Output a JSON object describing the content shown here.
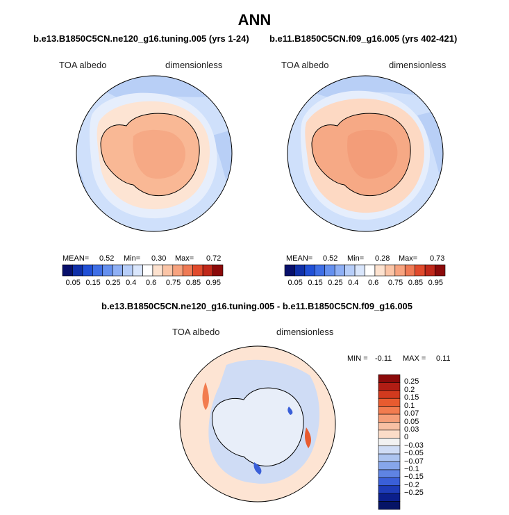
{
  "title": "ANN",
  "panels": [
    {
      "id": "left",
      "case": "b.e13.B1850C5CN.ne120_g16.tuning.005 (yrs 1-24)",
      "variable": "TOA albedo",
      "units": "dimensionless",
      "mean_label": "MEAN=",
      "mean": "0.52",
      "min_label": "Min=",
      "min": "0.30",
      "max_label": "Max=",
      "max": "0.72"
    },
    {
      "id": "right",
      "case": "b.e11.B1850C5CN.f09_g16.005 (yrs 402-421)",
      "variable": "TOA albedo",
      "units": "dimensionless",
      "mean_label": "MEAN=",
      "mean": "0.52",
      "min_label": "Min=",
      "min": "0.28",
      "max_label": "Max=",
      "max": "0.73"
    }
  ],
  "horizontal_colorbar": {
    "colors": [
      "#08106b",
      "#1030a8",
      "#2150d6",
      "#3f6fe6",
      "#6590ef",
      "#8fb0f5",
      "#b7cef9",
      "#d9e6fc",
      "#ffffff",
      "#fde2cf",
      "#fbc5a7",
      "#f7a37f",
      "#ef7a55",
      "#e04a2c",
      "#c0281a",
      "#8b0a0a"
    ],
    "labels": [
      "0.05",
      "0.15",
      "0.25",
      "0.4",
      "0.6",
      "0.75",
      "0.85",
      "0.95"
    ]
  },
  "difference": {
    "title": "b.e13.B1850C5CN.ne120_g16.tuning.005 - b.e11.B1850C5CN.f09_g16.005",
    "variable": "TOA albedo",
    "units": "dimensionless",
    "min_label": "MIN =",
    "min": "-0.11",
    "max_label": "MAX =",
    "max": "0.11",
    "colorbar": {
      "colors": [
        "#8b0a0a",
        "#b11d14",
        "#d23a1e",
        "#e85b2f",
        "#f27c4f",
        "#f59e78",
        "#f8c0a3",
        "#fbdcc8",
        "#f2f2f2",
        "#cfdcf5",
        "#acc4f0",
        "#86a6ea",
        "#5f84e3",
        "#3a5fd8",
        "#1e3cb8",
        "#0b1f8c",
        "#061466"
      ],
      "labels": [
        "0.25",
        "0.2",
        "0.15",
        "0.1",
        "0.07",
        "0.05",
        "0.03",
        "0",
        "−0.03",
        "−0.05",
        "−0.07",
        "−0.1",
        "−0.15",
        "−0.2",
        "−0.25"
      ]
    }
  }
}
